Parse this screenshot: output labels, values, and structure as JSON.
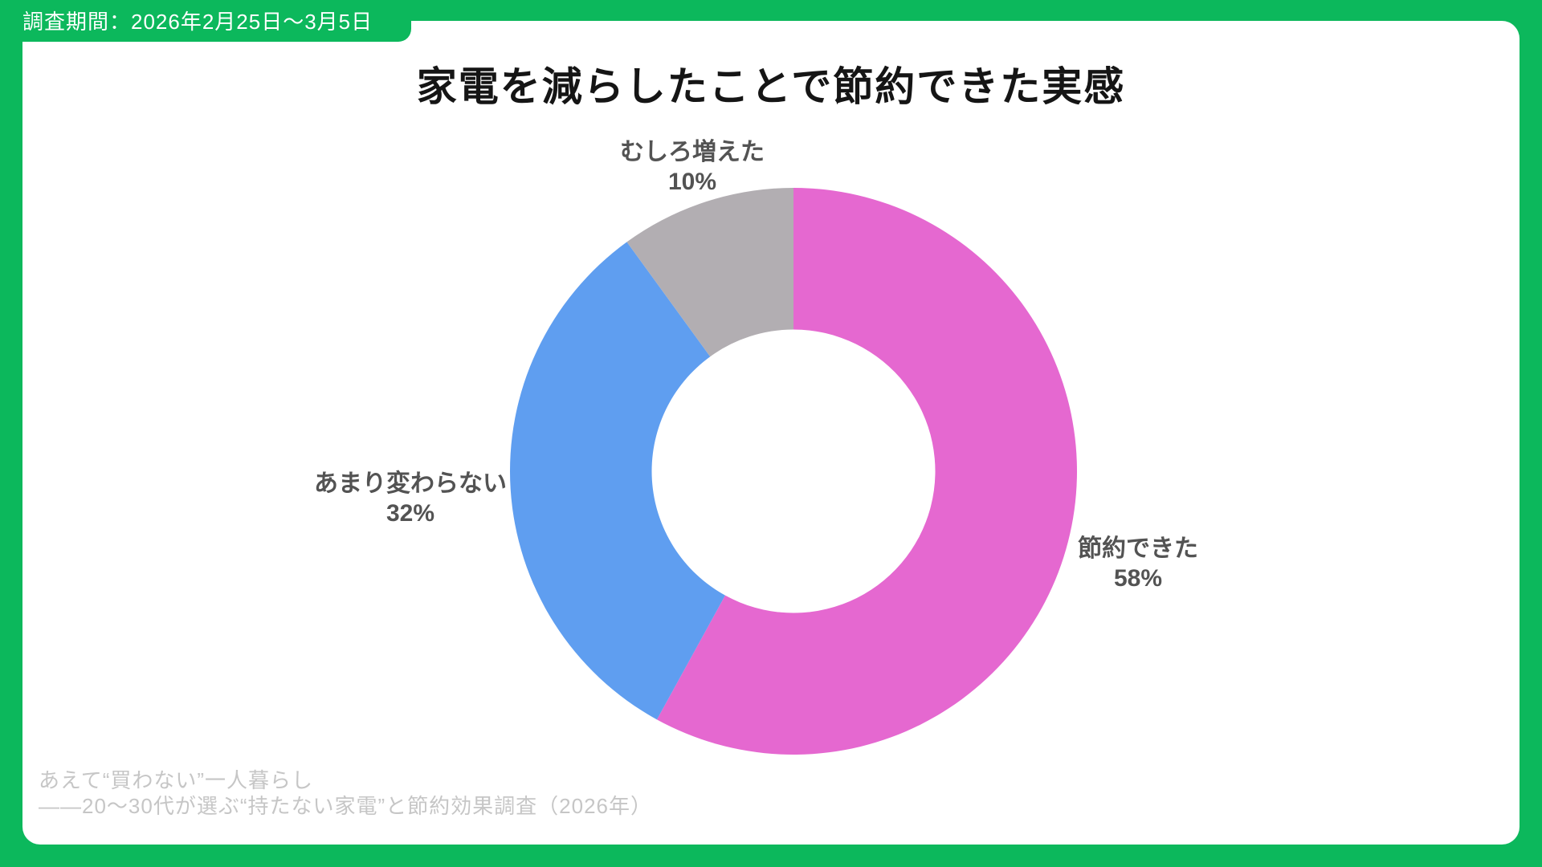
{
  "badge": {
    "text": "調査期間：2026年2月25日〜3月5日"
  },
  "title": "家電を減らしたことで節約できた実感",
  "chart_data": {
    "type": "pie",
    "variant": "donut",
    "title": "家電を減らしたことで節約できた実感",
    "unit": "%",
    "total": 100,
    "direction": "clockwise",
    "start_angle_deg_from_top": 0,
    "inner_radius_ratio": 0.5,
    "legend": "none",
    "label_position": "outside",
    "segments": [
      {
        "label": "節約できた",
        "value": 58,
        "pct_label": "58%",
        "color": "#e568d0"
      },
      {
        "label": "あまり変わらない",
        "value": 32,
        "pct_label": "32%",
        "color": "#5f9ef0"
      },
      {
        "label": "むしろ増えた",
        "value": 10,
        "pct_label": "10%",
        "color": "#b2aeb2"
      }
    ]
  },
  "footer": {
    "line1": "あえて“買わない”一人暮らし",
    "line2": "——20〜30代が選ぶ“持たない家電”と節約効果調査（2026年）"
  },
  "colors": {
    "frame_green": "#0cb85c",
    "badge_text": "#ffffff",
    "title_text": "#151515",
    "label_text": "#535353",
    "footer_text": "#c6c6c6",
    "panel_bg": "#ffffff",
    "segment_pink": "#e568d0",
    "segment_blue": "#5f9ef0",
    "segment_gray": "#b2aeb2"
  }
}
